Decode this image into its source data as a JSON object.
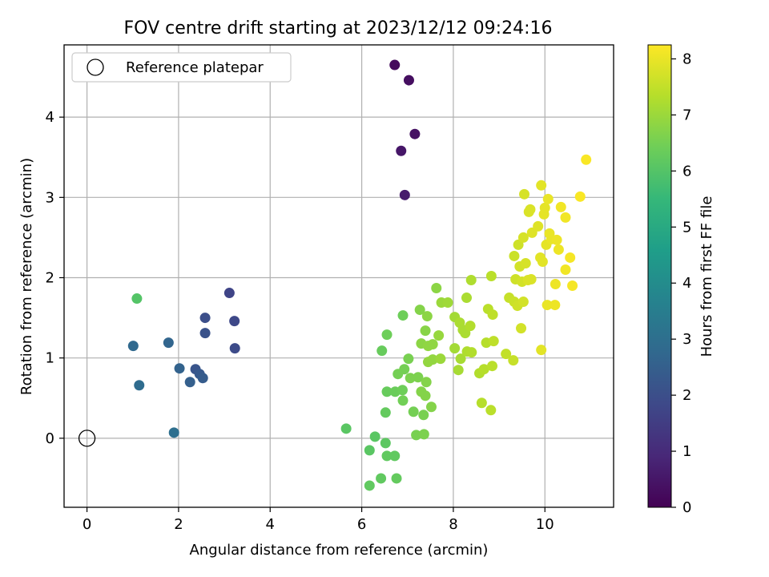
{
  "chart_data": {
    "type": "scatter",
    "title": "FOV centre drift starting at 2023/12/12 09:24:16",
    "xlabel": "Angular distance from reference (arcmin)",
    "ylabel": "Rotation from reference (arcmin)",
    "xlim": [
      -0.5,
      11.5
    ],
    "ylim": [
      -0.86,
      4.9
    ],
    "xticks": [
      0,
      2,
      4,
      6,
      8,
      10
    ],
    "yticks": [
      0,
      1,
      2,
      3,
      4
    ],
    "grid": true,
    "legend": {
      "position": "top-left",
      "entries": [
        "Reference platepar"
      ]
    },
    "reference_point": {
      "x": 0,
      "y": 0
    },
    "colorbar": {
      "label": "Hours from first FF file",
      "range": [
        0,
        8.25
      ],
      "ticks": [
        0,
        1,
        2,
        3,
        4,
        5,
        6,
        7,
        8
      ],
      "colormap": [
        "#440154",
        "#482878",
        "#3e4989",
        "#31688e",
        "#26828e",
        "#1f9e89",
        "#35b779",
        "#6ece58",
        "#b5de2b",
        "#fde725"
      ]
    },
    "points": [
      {
        "x": 6.72,
        "y": 4.65,
        "c": 0.2
      },
      {
        "x": 7.03,
        "y": 4.46,
        "c": 0.3
      },
      {
        "x": 7.16,
        "y": 3.79,
        "c": 0.4
      },
      {
        "x": 6.86,
        "y": 3.58,
        "c": 0.5
      },
      {
        "x": 6.94,
        "y": 3.03,
        "c": 0.6
      },
      {
        "x": 3.11,
        "y": 1.81,
        "c": 1.7
      },
      {
        "x": 3.22,
        "y": 1.46,
        "c": 1.8
      },
      {
        "x": 3.23,
        "y": 1.12,
        "c": 1.9
      },
      {
        "x": 2.58,
        "y": 1.5,
        "c": 2.0
      },
      {
        "x": 2.58,
        "y": 1.31,
        "c": 2.1
      },
      {
        "x": 2.37,
        "y": 0.86,
        "c": 2.2
      },
      {
        "x": 2.46,
        "y": 0.8,
        "c": 2.3
      },
      {
        "x": 2.53,
        "y": 0.75,
        "c": 2.4
      },
      {
        "x": 2.25,
        "y": 0.7,
        "c": 2.5
      },
      {
        "x": 2.02,
        "y": 0.87,
        "c": 2.6
      },
      {
        "x": 1.78,
        "y": 1.19,
        "c": 2.7
      },
      {
        "x": 1.01,
        "y": 1.15,
        "c": 2.8
      },
      {
        "x": 1.14,
        "y": 0.66,
        "c": 2.9
      },
      {
        "x": 1.9,
        "y": 0.07,
        "c": 3.0
      },
      {
        "x": 1.09,
        "y": 1.74,
        "c": 6.0
      },
      {
        "x": 5.66,
        "y": 0.12,
        "c": 6.1
      },
      {
        "x": 6.29,
        "y": 0.02,
        "c": 6.1
      },
      {
        "x": 6.52,
        "y": -0.06,
        "c": 6.15
      },
      {
        "x": 6.17,
        "y": -0.15,
        "c": 6.1
      },
      {
        "x": 6.55,
        "y": -0.22,
        "c": 6.2
      },
      {
        "x": 6.72,
        "y": -0.22,
        "c": 6.2
      },
      {
        "x": 6.42,
        "y": -0.5,
        "c": 6.2
      },
      {
        "x": 6.76,
        "y": -0.5,
        "c": 6.25
      },
      {
        "x": 6.17,
        "y": -0.59,
        "c": 6.2
      },
      {
        "x": 6.52,
        "y": 0.32,
        "c": 6.25
      },
      {
        "x": 6.55,
        "y": 0.58,
        "c": 6.3
      },
      {
        "x": 6.73,
        "y": 0.58,
        "c": 6.35
      },
      {
        "x": 6.89,
        "y": 0.6,
        "c": 6.4
      },
      {
        "x": 6.44,
        "y": 1.09,
        "c": 6.3
      },
      {
        "x": 6.55,
        "y": 1.29,
        "c": 6.4
      },
      {
        "x": 6.9,
        "y": 1.53,
        "c": 6.4
      },
      {
        "x": 6.9,
        "y": 0.47,
        "c": 6.45
      },
      {
        "x": 7.13,
        "y": 0.33,
        "c": 6.5
      },
      {
        "x": 7.19,
        "y": 0.04,
        "c": 6.55
      },
      {
        "x": 7.36,
        "y": 0.05,
        "c": 6.6
      },
      {
        "x": 7.35,
        "y": 0.29,
        "c": 6.55
      },
      {
        "x": 6.79,
        "y": 0.8,
        "c": 6.5
      },
      {
        "x": 6.93,
        "y": 0.86,
        "c": 6.5
      },
      {
        "x": 7.02,
        "y": 0.99,
        "c": 6.55
      },
      {
        "x": 7.06,
        "y": 0.75,
        "c": 6.6
      },
      {
        "x": 7.23,
        "y": 0.76,
        "c": 6.6
      },
      {
        "x": 7.3,
        "y": 0.58,
        "c": 6.7
      },
      {
        "x": 7.39,
        "y": 0.53,
        "c": 6.7
      },
      {
        "x": 7.41,
        "y": 0.7,
        "c": 6.7
      },
      {
        "x": 7.52,
        "y": 0.39,
        "c": 6.7
      },
      {
        "x": 7.27,
        "y": 1.6,
        "c": 6.7
      },
      {
        "x": 7.39,
        "y": 1.34,
        "c": 6.75
      },
      {
        "x": 7.43,
        "y": 1.52,
        "c": 6.8
      },
      {
        "x": 7.3,
        "y": 1.18,
        "c": 6.8
      },
      {
        "x": 7.45,
        "y": 1.15,
        "c": 6.85
      },
      {
        "x": 7.55,
        "y": 1.17,
        "c": 6.85
      },
      {
        "x": 7.45,
        "y": 0.95,
        "c": 6.9
      },
      {
        "x": 7.55,
        "y": 0.98,
        "c": 6.9
      },
      {
        "x": 7.63,
        "y": 1.87,
        "c": 6.8
      },
      {
        "x": 7.68,
        "y": 1.28,
        "c": 6.95
      },
      {
        "x": 7.72,
        "y": 0.99,
        "c": 7.0
      },
      {
        "x": 7.74,
        "y": 1.69,
        "c": 7.0
      },
      {
        "x": 7.88,
        "y": 1.69,
        "c": 7.05
      },
      {
        "x": 8.03,
        "y": 1.51,
        "c": 7.1
      },
      {
        "x": 8.03,
        "y": 1.12,
        "c": 7.1
      },
      {
        "x": 8.11,
        "y": 0.85,
        "c": 7.15
      },
      {
        "x": 8.16,
        "y": 0.99,
        "c": 7.15
      },
      {
        "x": 8.14,
        "y": 1.44,
        "c": 7.2
      },
      {
        "x": 8.21,
        "y": 1.35,
        "c": 7.2
      },
      {
        "x": 8.26,
        "y": 1.31,
        "c": 7.2
      },
      {
        "x": 8.3,
        "y": 1.08,
        "c": 7.25
      },
      {
        "x": 8.29,
        "y": 1.75,
        "c": 7.2
      },
      {
        "x": 8.39,
        "y": 1.97,
        "c": 7.25
      },
      {
        "x": 8.37,
        "y": 1.4,
        "c": 7.3
      },
      {
        "x": 8.4,
        "y": 1.07,
        "c": 7.3
      },
      {
        "x": 8.57,
        "y": 0.81,
        "c": 7.3
      },
      {
        "x": 8.62,
        "y": 0.44,
        "c": 7.35
      },
      {
        "x": 8.67,
        "y": 0.86,
        "c": 7.35
      },
      {
        "x": 8.72,
        "y": 1.19,
        "c": 7.35
      },
      {
        "x": 8.76,
        "y": 1.61,
        "c": 7.4
      },
      {
        "x": 8.83,
        "y": 2.02,
        "c": 7.4
      },
      {
        "x": 8.82,
        "y": 0.35,
        "c": 7.4
      },
      {
        "x": 8.85,
        "y": 0.9,
        "c": 7.4
      },
      {
        "x": 8.86,
        "y": 1.54,
        "c": 7.45
      },
      {
        "x": 8.88,
        "y": 1.21,
        "c": 7.45
      },
      {
        "x": 9.15,
        "y": 1.05,
        "c": 7.5
      },
      {
        "x": 9.22,
        "y": 1.75,
        "c": 7.55
      },
      {
        "x": 9.31,
        "y": 0.97,
        "c": 7.55
      },
      {
        "x": 9.33,
        "y": 1.7,
        "c": 7.6
      },
      {
        "x": 9.33,
        "y": 2.27,
        "c": 7.6
      },
      {
        "x": 9.36,
        "y": 1.98,
        "c": 7.65
      },
      {
        "x": 9.4,
        "y": 1.65,
        "c": 7.65
      },
      {
        "x": 9.42,
        "y": 2.41,
        "c": 7.65
      },
      {
        "x": 9.45,
        "y": 2.14,
        "c": 7.7
      },
      {
        "x": 9.48,
        "y": 1.37,
        "c": 7.7
      },
      {
        "x": 9.5,
        "y": 1.95,
        "c": 7.7
      },
      {
        "x": 9.53,
        "y": 1.7,
        "c": 7.7
      },
      {
        "x": 9.53,
        "y": 2.5,
        "c": 7.75
      },
      {
        "x": 9.55,
        "y": 3.04,
        "c": 7.75
      },
      {
        "x": 9.58,
        "y": 2.18,
        "c": 7.75
      },
      {
        "x": 9.63,
        "y": 1.97,
        "c": 7.8
      },
      {
        "x": 9.65,
        "y": 2.82,
        "c": 7.8
      },
      {
        "x": 9.68,
        "y": 2.85,
        "c": 7.8
      },
      {
        "x": 9.7,
        "y": 1.98,
        "c": 7.8
      },
      {
        "x": 9.72,
        "y": 2.56,
        "c": 7.85
      },
      {
        "x": 9.85,
        "y": 2.64,
        "c": 7.85
      },
      {
        "x": 9.9,
        "y": 2.25,
        "c": 7.9
      },
      {
        "x": 9.92,
        "y": 1.1,
        "c": 7.9
      },
      {
        "x": 9.92,
        "y": 3.15,
        "c": 7.9
      },
      {
        "x": 9.95,
        "y": 2.2,
        "c": 7.9
      },
      {
        "x": 9.98,
        "y": 2.79,
        "c": 7.95
      },
      {
        "x": 10.0,
        "y": 2.87,
        "c": 7.95
      },
      {
        "x": 10.03,
        "y": 2.41,
        "c": 7.95
      },
      {
        "x": 10.05,
        "y": 1.66,
        "c": 8.0
      },
      {
        "x": 10.07,
        "y": 2.98,
        "c": 8.0
      },
      {
        "x": 10.1,
        "y": 2.55,
        "c": 8.0
      },
      {
        "x": 10.14,
        "y": 2.48,
        "c": 8.0
      },
      {
        "x": 10.22,
        "y": 1.66,
        "c": 8.05
      },
      {
        "x": 10.23,
        "y": 1.92,
        "c": 8.05
      },
      {
        "x": 10.26,
        "y": 2.47,
        "c": 8.05
      },
      {
        "x": 10.3,
        "y": 2.35,
        "c": 8.05
      },
      {
        "x": 10.35,
        "y": 2.88,
        "c": 8.1
      },
      {
        "x": 10.45,
        "y": 2.75,
        "c": 8.1
      },
      {
        "x": 10.45,
        "y": 2.1,
        "c": 8.1
      },
      {
        "x": 10.55,
        "y": 2.25,
        "c": 8.15
      },
      {
        "x": 10.6,
        "y": 1.9,
        "c": 8.15
      },
      {
        "x": 10.77,
        "y": 3.01,
        "c": 8.2
      },
      {
        "x": 10.9,
        "y": 3.47,
        "c": 8.2
      }
    ]
  }
}
